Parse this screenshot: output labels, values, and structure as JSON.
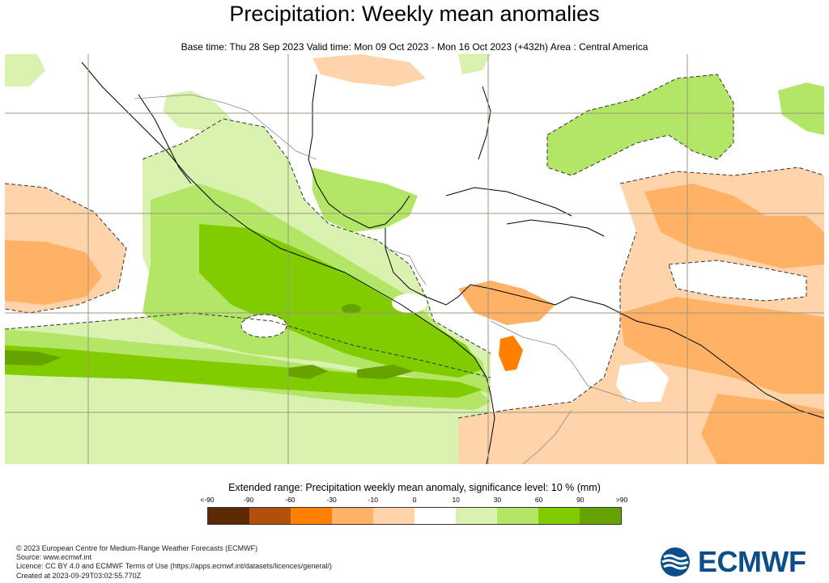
{
  "header": {
    "title": "Precipitation: Weekly mean anomalies",
    "subtitle": "Base time: Thu 28 Sep 2023 Valid time: Mon 09 Oct 2023 - Mon 16 Oct 2023 (+432h) Area : Central America"
  },
  "legend": {
    "title": "Extended range: Precipitation weekly mean anomaly, significance level: 10 % (mm)",
    "ticks": [
      "<-90",
      "-90",
      "-60",
      "-30",
      "-10",
      "0",
      "10",
      "30",
      "60",
      "90",
      ">90"
    ],
    "colors": [
      "#5c2a05",
      "#b0500a",
      "#ff7f00",
      "#ffb266",
      "#ffd4aa",
      "#ffffff",
      "#d9f2b0",
      "#b3e566",
      "#80cc00",
      "#66a300",
      "#4d7a00"
    ]
  },
  "footer": {
    "line1": "© 2023 European Centre for Medium-Range Weather Forecasts (ECMWF)",
    "line2": "Source: www.ecmwf.int",
    "line3": "Licence: CC BY 4.0 and ECMWF Terms of Use (https://apps.ecmwf.int/datasets/licences/general/)",
    "line4": "Created at 2023-09-29T03:02:55.770Z"
  },
  "logo": {
    "text": "ECMWF",
    "color": "#0a4f8a"
  }
}
